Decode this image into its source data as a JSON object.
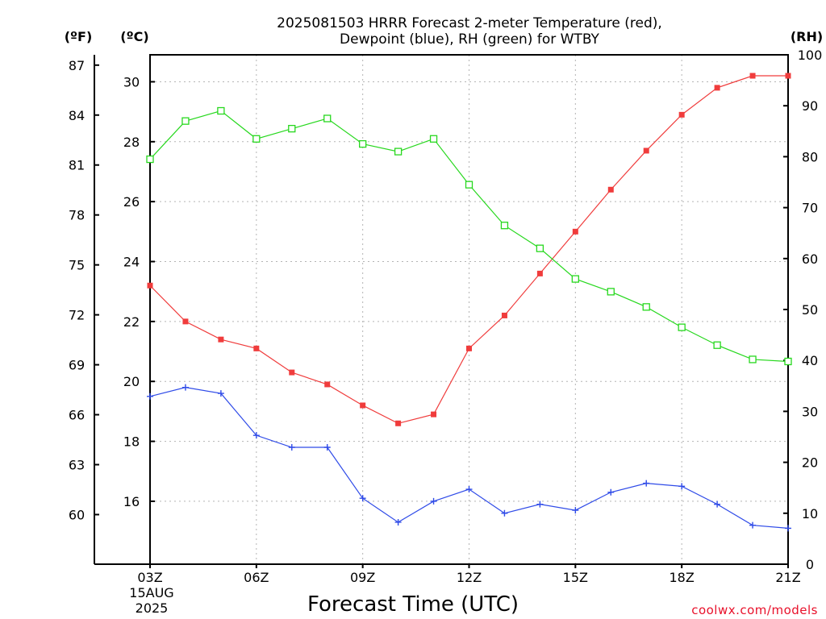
{
  "chart_data": {
    "type": "line",
    "title_line1": "2025081503 HRRR Forecast 2-meter Temperature (red),",
    "title_line2": "Dewpoint (blue), RH (green) for WTBY",
    "xlabel": "Forecast Time (UTC)",
    "credit": "coolwx.com/models",
    "unit_f": "(ºF)",
    "unit_c": "(ºC)",
    "unit_rh": "(RH)",
    "date_line1": "15AUG",
    "date_line2": "2025",
    "x_hours": [
      3,
      4,
      5,
      6,
      7,
      8,
      9,
      10,
      11,
      12,
      13,
      14,
      15,
      16,
      17,
      18,
      19,
      20,
      21
    ],
    "x_ticks": [
      {
        "hour": 3,
        "label": "03Z"
      },
      {
        "hour": 6,
        "label": "06Z"
      },
      {
        "hour": 9,
        "label": "09Z"
      },
      {
        "hour": 12,
        "label": "12Z"
      },
      {
        "hour": 15,
        "label": "15Z"
      },
      {
        "hour": 18,
        "label": "18Z"
      },
      {
        "hour": 21,
        "label": "21Z"
      }
    ],
    "xlim": [
      3,
      21
    ],
    "ylim_c": [
      13.9,
      30.9
    ],
    "ylim_rh": [
      0,
      100
    ],
    "celsius_ticks": [
      16,
      18,
      20,
      22,
      24,
      26,
      28,
      30
    ],
    "fahrenheit_ticks": [
      60,
      63,
      66,
      69,
      72,
      75,
      78,
      81,
      84,
      87
    ],
    "rh_ticks": [
      0,
      10,
      20,
      30,
      40,
      50,
      60,
      70,
      80,
      90,
      100
    ],
    "grid": true,
    "series": [
      {
        "key": "temperature",
        "color": "#f03c3c",
        "marker": "filled-square",
        "values": [
          23.2,
          22.0,
          21.4,
          21.1,
          20.3,
          19.9,
          19.2,
          18.6,
          18.9,
          21.1,
          22.2,
          23.6,
          25.0,
          26.4,
          27.7,
          28.9,
          29.8,
          30.2,
          30.2
        ]
      },
      {
        "key": "dewpoint",
        "color": "#2f4be8",
        "marker": "plus",
        "values": [
          19.5,
          19.8,
          19.6,
          18.2,
          17.8,
          17.8,
          16.1,
          15.3,
          16.0,
          16.4,
          15.6,
          15.9,
          15.7,
          16.3,
          16.6,
          16.5,
          15.9,
          15.2,
          15.1
        ]
      },
      {
        "key": "rh",
        "color": "#27d81e",
        "marker": "open-square",
        "values": [
          79.5,
          87.0,
          89.0,
          83.5,
          85.5,
          87.5,
          82.5,
          81.0,
          83.5,
          74.5,
          66.5,
          62.0,
          56.0,
          53.5,
          50.5,
          46.5,
          43.0,
          40.2,
          39.8
        ]
      }
    ]
  }
}
